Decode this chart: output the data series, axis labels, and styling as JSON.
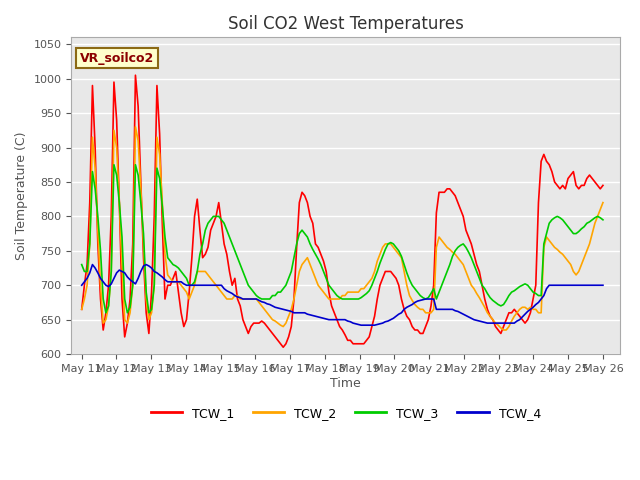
{
  "title": "Soil CO2 West Temperatures",
  "xlabel": "Time",
  "ylabel": "Soil Temperature (C)",
  "ylim": [
    600,
    1060
  ],
  "yticks": [
    600,
    650,
    700,
    750,
    800,
    850,
    900,
    950,
    1000,
    1050
  ],
  "annotation": "VR_soilco2",
  "background_color": "#e8e8e8",
  "line_colors": {
    "TCW_1": "#ff0000",
    "TCW_2": "#ffa500",
    "TCW_3": "#00cc00",
    "TCW_4": "#0000cd"
  },
  "x_labels": [
    "May 11",
    "May 12",
    "May 13",
    "May 14",
    "May 15",
    "May 16",
    "May 17",
    "May 18",
    "May 19",
    "May 20",
    "May 21",
    "May 22",
    "May 23",
    "May 24",
    "May 25",
    "May 26"
  ],
  "TCW_1": [
    665,
    700,
    730,
    820,
    990,
    900,
    760,
    680,
    635,
    660,
    700,
    800,
    995,
    940,
    820,
    680,
    625,
    645,
    680,
    760,
    1005,
    960,
    850,
    740,
    660,
    630,
    690,
    800,
    990,
    920,
    790,
    680,
    700,
    700,
    710,
    720,
    690,
    660,
    640,
    650,
    690,
    740,
    800,
    825,
    780,
    740,
    745,
    755,
    780,
    790,
    800,
    820,
    790,
    760,
    745,
    720,
    700,
    710,
    680,
    670,
    650,
    640,
    630,
    640,
    645,
    645,
    645,
    648,
    645,
    640,
    635,
    630,
    625,
    620,
    615,
    610,
    615,
    625,
    640,
    680,
    755,
    820,
    835,
    830,
    820,
    800,
    790,
    760,
    755,
    745,
    735,
    720,
    690,
    670,
    660,
    650,
    640,
    635,
    628,
    620,
    620,
    615,
    615,
    615,
    615,
    615,
    620,
    625,
    640,
    655,
    680,
    700,
    710,
    720,
    720,
    720,
    715,
    710,
    700,
    680,
    665,
    655,
    650,
    640,
    635,
    635,
    630,
    630,
    640,
    650,
    670,
    700,
    805,
    835,
    835,
    835,
    840,
    840,
    835,
    830,
    820,
    810,
    800,
    780,
    770,
    760,
    745,
    730,
    720,
    700,
    680,
    665,
    655,
    650,
    640,
    635,
    630,
    640,
    650,
    660,
    660,
    665,
    660,
    655,
    650,
    645,
    650,
    660,
    680,
    700,
    820,
    880,
    890,
    880,
    875,
    865,
    850,
    845,
    840,
    845,
    840,
    855,
    860,
    865,
    845,
    840,
    845,
    845,
    855,
    860,
    855,
    850,
    845,
    840,
    845
  ],
  "TCW_2": [
    665,
    680,
    700,
    760,
    915,
    870,
    780,
    700,
    645,
    650,
    670,
    720,
    925,
    900,
    820,
    730,
    650,
    645,
    660,
    700,
    930,
    910,
    840,
    760,
    680,
    650,
    660,
    700,
    915,
    890,
    820,
    745,
    715,
    710,
    705,
    705,
    705,
    700,
    695,
    690,
    680,
    690,
    700,
    720,
    720,
    720,
    720,
    715,
    710,
    705,
    700,
    695,
    690,
    685,
    680,
    680,
    680,
    685,
    685,
    680,
    680,
    680,
    680,
    680,
    680,
    680,
    675,
    670,
    665,
    660,
    655,
    650,
    648,
    645,
    642,
    640,
    645,
    655,
    665,
    680,
    700,
    720,
    730,
    735,
    740,
    730,
    720,
    710,
    700,
    695,
    690,
    685,
    680,
    680,
    680,
    680,
    680,
    685,
    685,
    690,
    690,
    690,
    690,
    690,
    695,
    695,
    700,
    705,
    710,
    720,
    735,
    745,
    755,
    760,
    760,
    760,
    755,
    750,
    745,
    740,
    720,
    700,
    685,
    678,
    672,
    668,
    665,
    665,
    660,
    660,
    660,
    665,
    755,
    770,
    765,
    760,
    755,
    752,
    748,
    745,
    740,
    735,
    730,
    720,
    710,
    700,
    695,
    688,
    682,
    675,
    668,
    660,
    655,
    650,
    645,
    642,
    638,
    635,
    635,
    640,
    648,
    655,
    660,
    665,
    668,
    668,
    665,
    668,
    665,
    665,
    660,
    660,
    755,
    770,
    765,
    760,
    755,
    752,
    748,
    745,
    740,
    735,
    730,
    720,
    715,
    720,
    730,
    740,
    750,
    760,
    775,
    790,
    800,
    810,
    820
  ],
  "TCW_3": [
    730,
    720,
    720,
    760,
    865,
    840,
    800,
    750,
    680,
    660,
    670,
    720,
    875,
    860,
    820,
    770,
    680,
    660,
    668,
    700,
    875,
    860,
    820,
    775,
    690,
    660,
    665,
    700,
    870,
    855,
    815,
    770,
    740,
    735,
    730,
    728,
    725,
    720,
    715,
    710,
    700,
    700,
    705,
    720,
    745,
    760,
    780,
    790,
    795,
    800,
    800,
    800,
    795,
    790,
    780,
    770,
    760,
    750,
    740,
    730,
    720,
    710,
    700,
    695,
    690,
    685,
    682,
    680,
    680,
    680,
    680,
    685,
    685,
    690,
    690,
    695,
    700,
    710,
    720,
    740,
    760,
    775,
    780,
    775,
    770,
    760,
    752,
    745,
    738,
    730,
    720,
    710,
    700,
    695,
    690,
    685,
    682,
    680,
    680,
    680,
    680,
    680,
    680,
    680,
    682,
    685,
    688,
    692,
    700,
    710,
    720,
    732,
    742,
    752,
    760,
    762,
    760,
    755,
    750,
    742,
    730,
    718,
    708,
    700,
    695,
    690,
    685,
    682,
    680,
    682,
    688,
    695,
    680,
    690,
    700,
    710,
    720,
    730,
    742,
    750,
    755,
    758,
    760,
    755,
    748,
    740,
    730,
    720,
    710,
    700,
    695,
    688,
    682,
    678,
    675,
    672,
    670,
    672,
    678,
    685,
    690,
    692,
    695,
    698,
    700,
    702,
    700,
    695,
    690,
    688,
    685,
    685,
    760,
    775,
    790,
    795,
    798,
    800,
    798,
    795,
    790,
    785,
    780,
    775,
    775,
    778,
    782,
    785,
    790,
    792,
    795,
    798,
    800,
    798,
    795
  ],
  "TCW_4": [
    700,
    705,
    710,
    718,
    730,
    725,
    718,
    710,
    705,
    700,
    698,
    702,
    710,
    718,
    722,
    720,
    718,
    712,
    708,
    705,
    702,
    710,
    720,
    728,
    730,
    728,
    725,
    720,
    718,
    715,
    712,
    708,
    705,
    705,
    705,
    705,
    705,
    705,
    702,
    700,
    700,
    700,
    700,
    700,
    700,
    700,
    700,
    700,
    700,
    700,
    700,
    700,
    700,
    695,
    692,
    690,
    688,
    685,
    683,
    682,
    680,
    680,
    680,
    680,
    680,
    680,
    678,
    676,
    675,
    673,
    672,
    670,
    668,
    667,
    666,
    665,
    664,
    663,
    662,
    660,
    660,
    660,
    660,
    660,
    658,
    657,
    656,
    655,
    654,
    653,
    652,
    651,
    650,
    650,
    650,
    650,
    650,
    650,
    650,
    648,
    647,
    645,
    644,
    643,
    642,
    642,
    642,
    642,
    642,
    642,
    643,
    644,
    645,
    647,
    648,
    650,
    652,
    655,
    658,
    660,
    665,
    668,
    670,
    672,
    675,
    677,
    678,
    679,
    680,
    680,
    680,
    680,
    665,
    665,
    665,
    665,
    665,
    665,
    665,
    663,
    662,
    660,
    658,
    656,
    654,
    652,
    650,
    649,
    648,
    647,
    646,
    645,
    645,
    645,
    645,
    645,
    645,
    645,
    645,
    645,
    645,
    645,
    648,
    650,
    654,
    658,
    662,
    665,
    668,
    672,
    675,
    680,
    685,
    695,
    700,
    700,
    700,
    700,
    700,
    700,
    700,
    700,
    700,
    700,
    700,
    700,
    700,
    700,
    700,
    700,
    700,
    700,
    700,
    700,
    700
  ]
}
